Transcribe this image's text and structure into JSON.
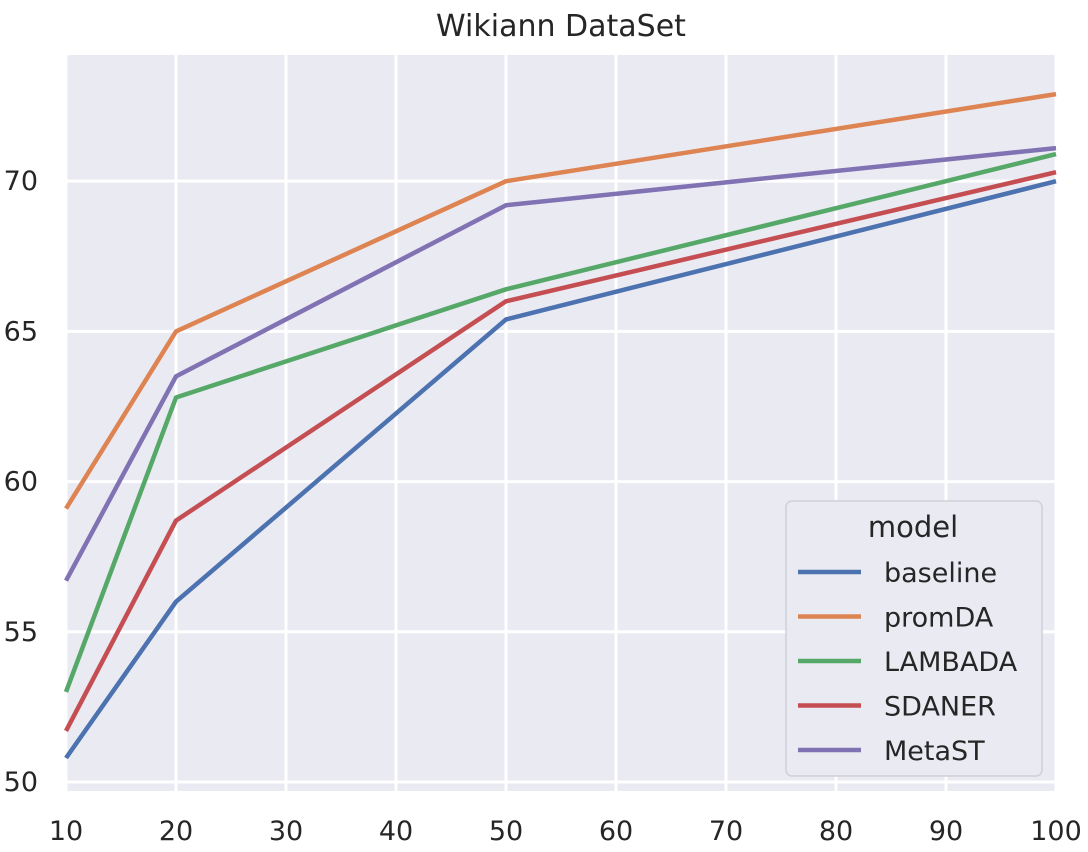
{
  "chart_data": {
    "type": "line",
    "title": "Wikiann DataSet",
    "xlabel": "",
    "ylabel": "",
    "x": [
      10,
      20,
      50,
      100
    ],
    "xlim": [
      10,
      100
    ],
    "ylim": [
      49.7,
      74.2
    ],
    "x_ticks": [
      10,
      20,
      30,
      40,
      50,
      60,
      70,
      80,
      90,
      100
    ],
    "y_ticks": [
      50,
      55,
      60,
      65,
      70
    ],
    "grid": true,
    "legend": {
      "title": "model",
      "placement": "lower-right"
    },
    "series": [
      {
        "name": "baseline",
        "color": "#4c72b0",
        "values": [
          50.8,
          56.0,
          65.4,
          70.0
        ]
      },
      {
        "name": "promDA",
        "color": "#dd8452",
        "values": [
          59.1,
          65.0,
          70.0,
          72.9
        ]
      },
      {
        "name": "LAMBADA",
        "color": "#55a868",
        "values": [
          53.0,
          62.8,
          66.4,
          70.9
        ]
      },
      {
        "name": "SDANER",
        "color": "#c44e52",
        "values": [
          51.7,
          58.7,
          66.0,
          70.3
        ]
      },
      {
        "name": "MetaST",
        "color": "#8172b3",
        "values": [
          56.7,
          63.5,
          69.2,
          71.1
        ]
      }
    ]
  }
}
